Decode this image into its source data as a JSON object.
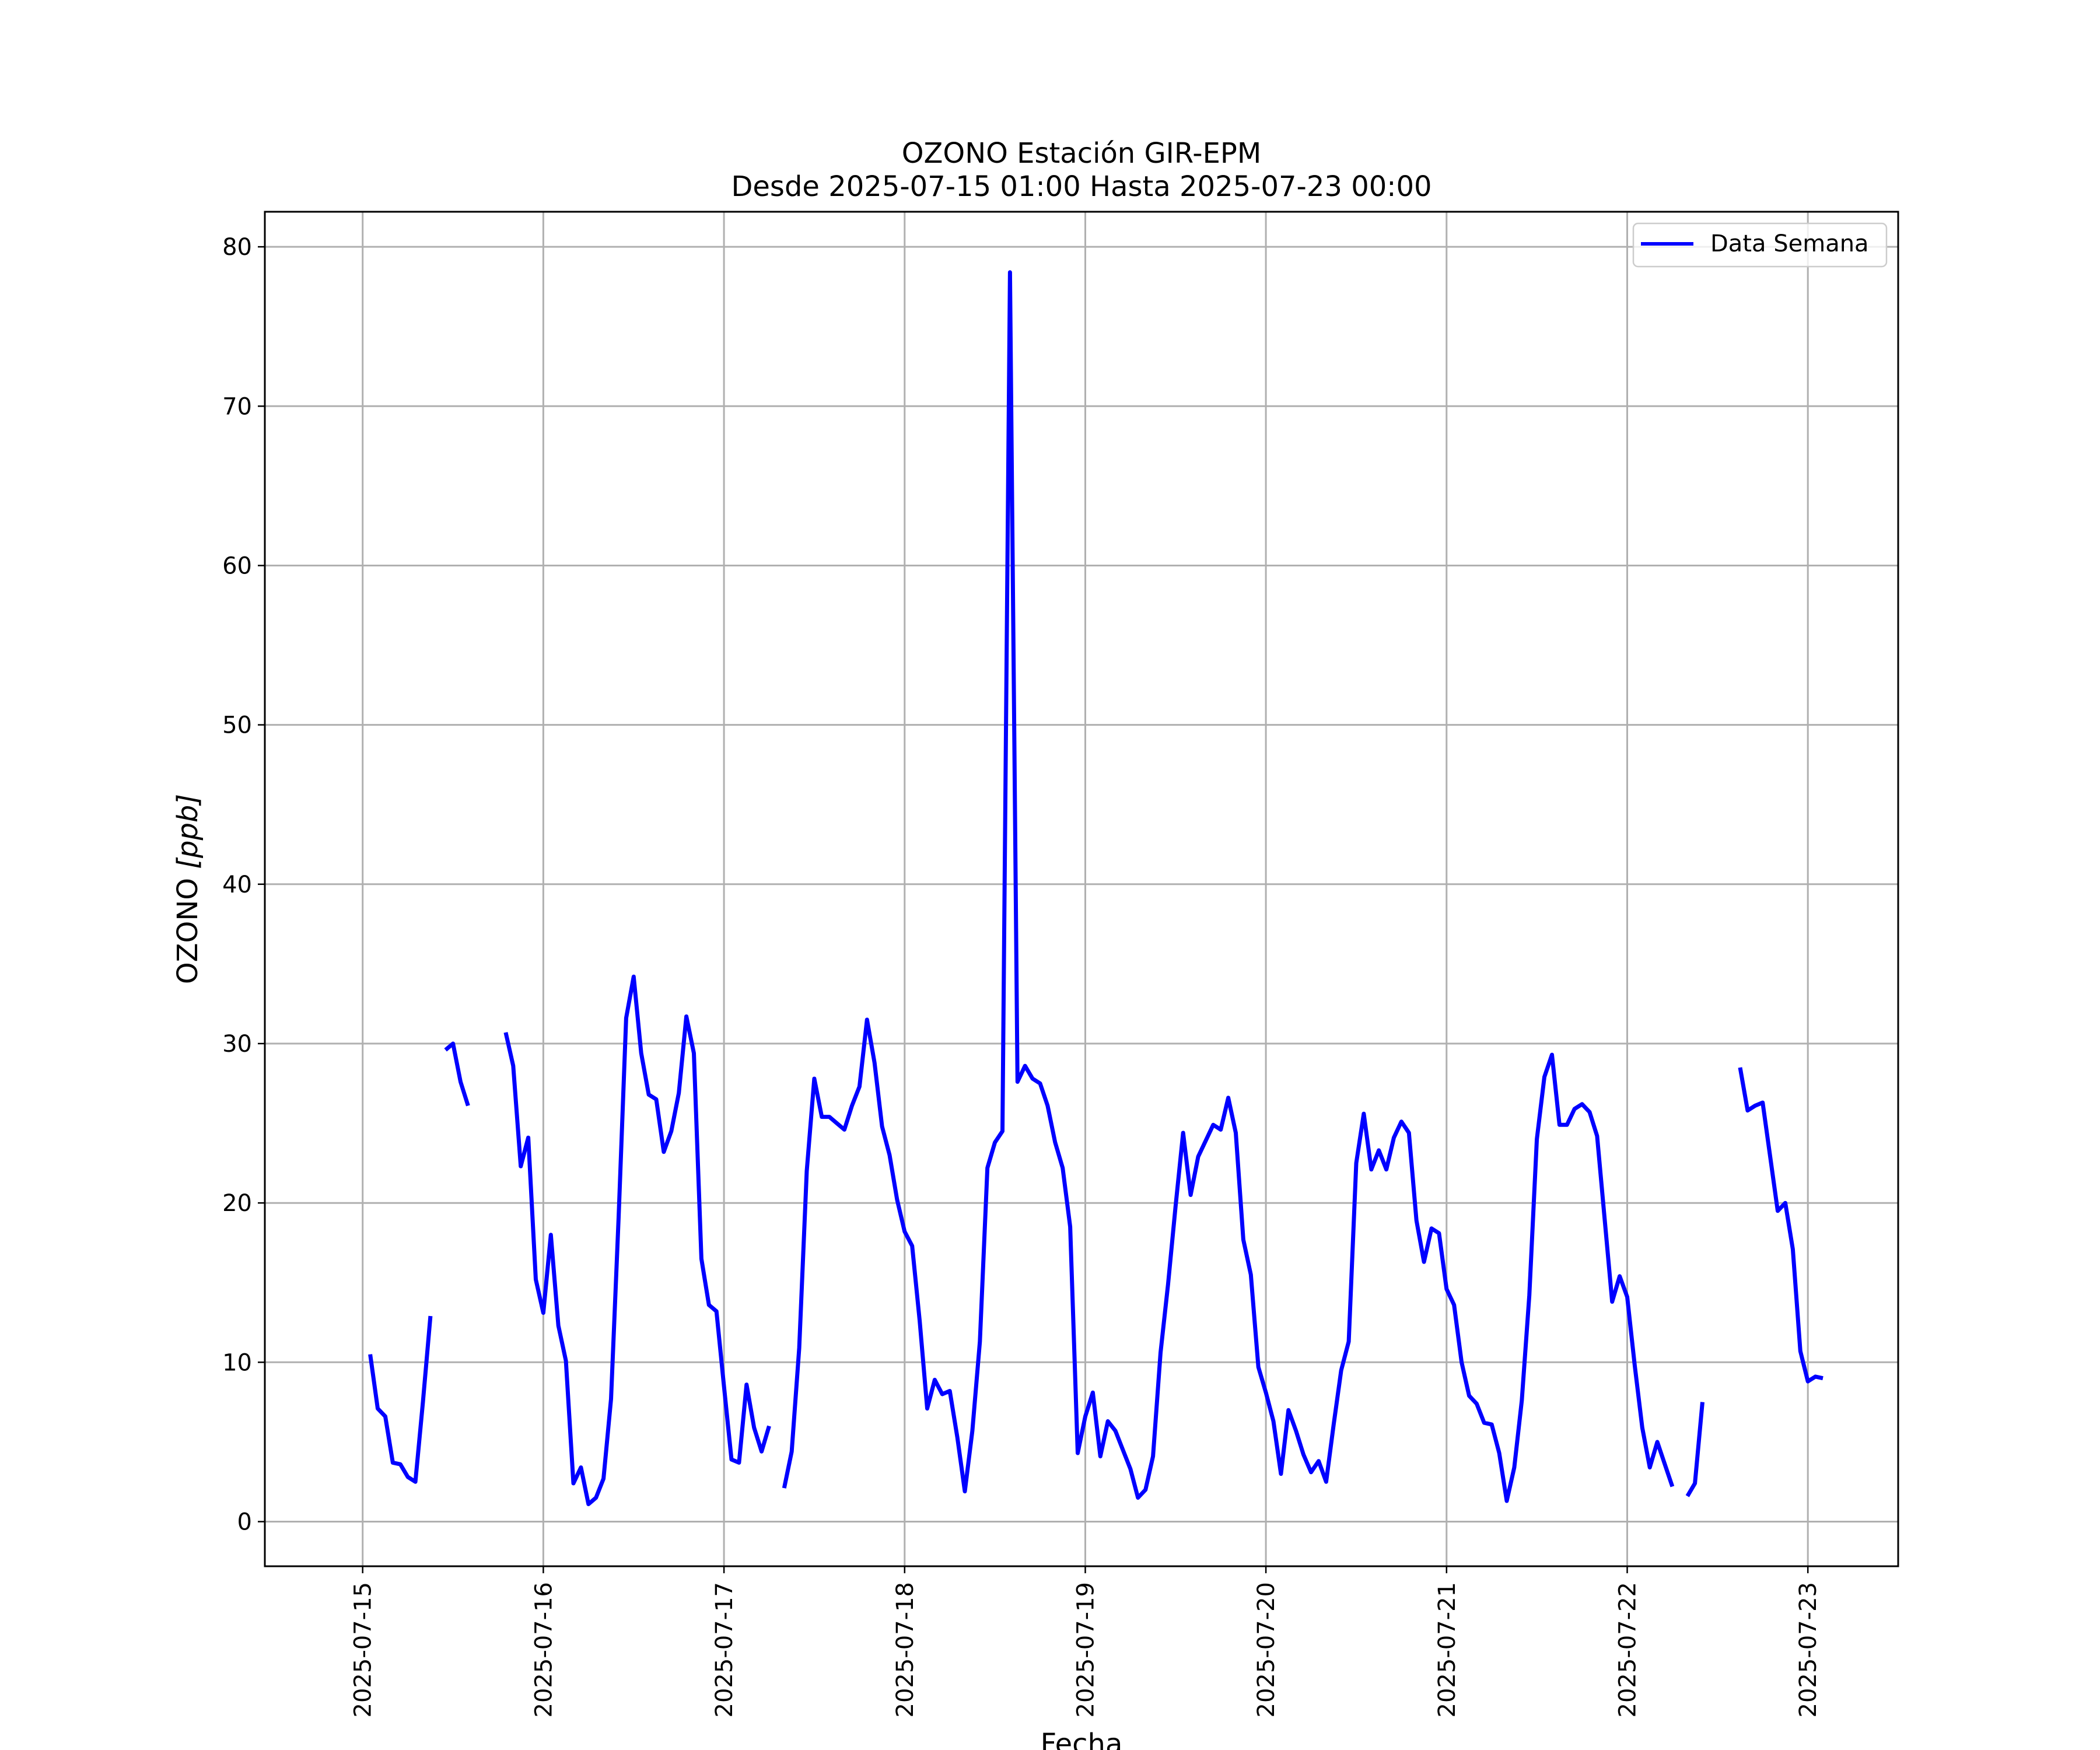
{
  "chart_data": {
    "type": "line",
    "title": "OZONO Estación GIR-EPM",
    "subtitle": "Desde 2025-07-15 01:00 Hasta 2025-07-23 00:00",
    "xlabel": "Fecha",
    "ylabel_main": "OZONO ",
    "ylabel_unit": "[ppb]",
    "xlim": [
      "2025-07-14T11:00",
      "2025-07-23T12:00"
    ],
    "ylim": [
      -2.8,
      82.2
    ],
    "grid": true,
    "legend_position": "top-right",
    "x_ticks": [
      "2025-07-15",
      "2025-07-16",
      "2025-07-17",
      "2025-07-18",
      "2025-07-19",
      "2025-07-20",
      "2025-07-21",
      "2025-07-22",
      "2025-07-23"
    ],
    "y_ticks": [
      0,
      10,
      20,
      30,
      40,
      50,
      60,
      70,
      80
    ],
    "colors": {
      "line": "#0000ff"
    },
    "series": [
      {
        "name": "Data Semana",
        "start": "2025-07-15T01:00",
        "interval_hours": 1,
        "values": [
          10.5,
          7.1,
          6.6,
          3.7,
          3.6,
          2.8,
          2.5,
          7.5,
          12.9,
          null,
          29.6,
          30.0,
          27.6,
          26.1,
          null,
          null,
          null,
          null,
          30.7,
          28.6,
          22.3,
          24.1,
          15.2,
          13.1,
          18.0,
          12.3,
          10.1,
          2.4,
          3.4,
          1.1,
          1.5,
          2.7,
          7.7,
          19.1,
          31.6,
          34.2,
          29.4,
          26.8,
          26.5,
          23.2,
          24.5,
          26.9,
          31.7,
          29.4,
          16.5,
          13.6,
          13.2,
          8.5,
          3.9,
          3.7,
          8.6,
          5.9,
          4.4,
          6.0,
          null,
          2.1,
          4.4,
          10.9,
          22.0,
          27.8,
          25.4,
          25.4,
          25.0,
          24.6,
          26.1,
          27.3,
          31.5,
          28.8,
          24.8,
          23.0,
          20.2,
          18.2,
          17.3,
          12.6,
          7.1,
          8.9,
          8.0,
          8.2,
          5.3,
          1.9,
          5.7,
          11.3,
          22.2,
          23.8,
          24.5,
          78.4,
          27.6,
          28.6,
          27.8,
          27.5,
          26.1,
          23.8,
          22.2,
          18.5,
          4.3,
          6.6,
          8.1,
          4.1,
          6.3,
          5.7,
          4.5,
          3.3,
          1.5,
          2.0,
          4.1,
          10.6,
          14.9,
          19.8,
          24.4,
          20.5,
          22.9,
          23.9,
          24.9,
          24.6,
          26.6,
          24.4,
          17.7,
          15.5,
          9.7,
          8.1,
          6.3,
          3.0,
          7.0,
          5.7,
          4.2,
          3.1,
          3.8,
          2.5,
          6.1,
          9.5,
          11.3,
          22.5,
          25.6,
          22.1,
          23.3,
          22.1,
          24.1,
          25.1,
          24.4,
          18.9,
          16.3,
          18.4,
          18.1,
          14.6,
          13.6,
          10.0,
          7.9,
          7.4,
          6.2,
          6.1,
          4.3,
          1.3,
          3.4,
          7.6,
          14.2,
          24.0,
          27.9,
          29.3,
          24.9,
          24.9,
          25.9,
          26.2,
          25.7,
          24.2,
          19.0,
          13.8,
          15.4,
          14.1,
          9.8,
          5.9,
          3.4,
          5.0,
          3.6,
          2.2,
          null,
          1.6,
          2.4,
          7.5,
          null,
          null,
          null,
          null,
          28.5,
          25.8,
          26.1,
          26.3,
          22.9,
          19.5,
          20.0,
          17.1,
          10.7,
          8.8,
          9.1,
          9.0
        ]
      }
    ]
  }
}
